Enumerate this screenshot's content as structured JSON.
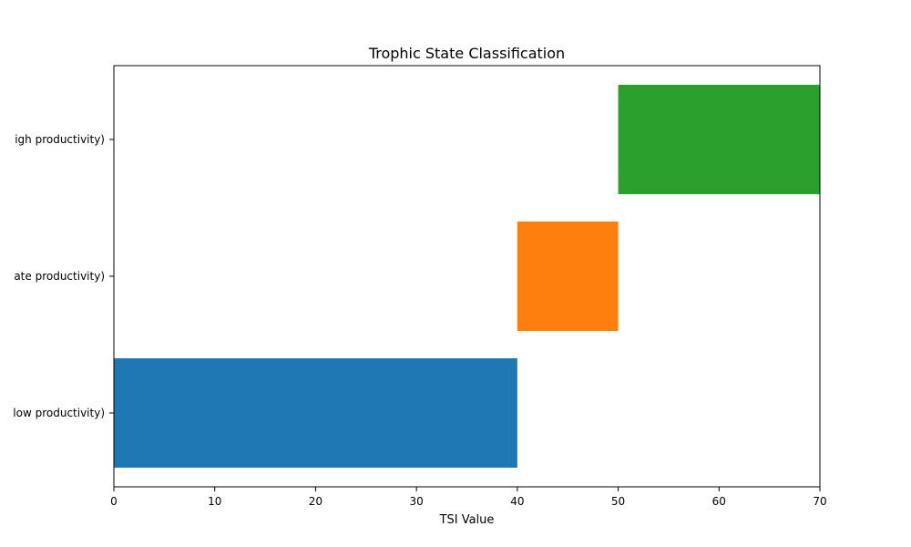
{
  "chart_data": {
    "type": "bar",
    "orientation": "horizontal",
    "title": "Trophic State Classification",
    "xlabel": "TSI Value",
    "ylabel": "",
    "xlim": [
      0,
      70
    ],
    "xticks": [
      0,
      10,
      20,
      30,
      40,
      50,
      60,
      70
    ],
    "grid": false,
    "legend": "none",
    "categories_visible_text": [
      "low productivity)",
      "ate productivity)",
      "igh productivity)"
    ],
    "bars": [
      {
        "start": 0,
        "end": 40,
        "color": "#1f77b4"
      },
      {
        "start": 40,
        "end": 50,
        "color": "#ff7f0e"
      },
      {
        "start": 50,
        "end": 70,
        "color": "#2ca02c"
      }
    ]
  }
}
